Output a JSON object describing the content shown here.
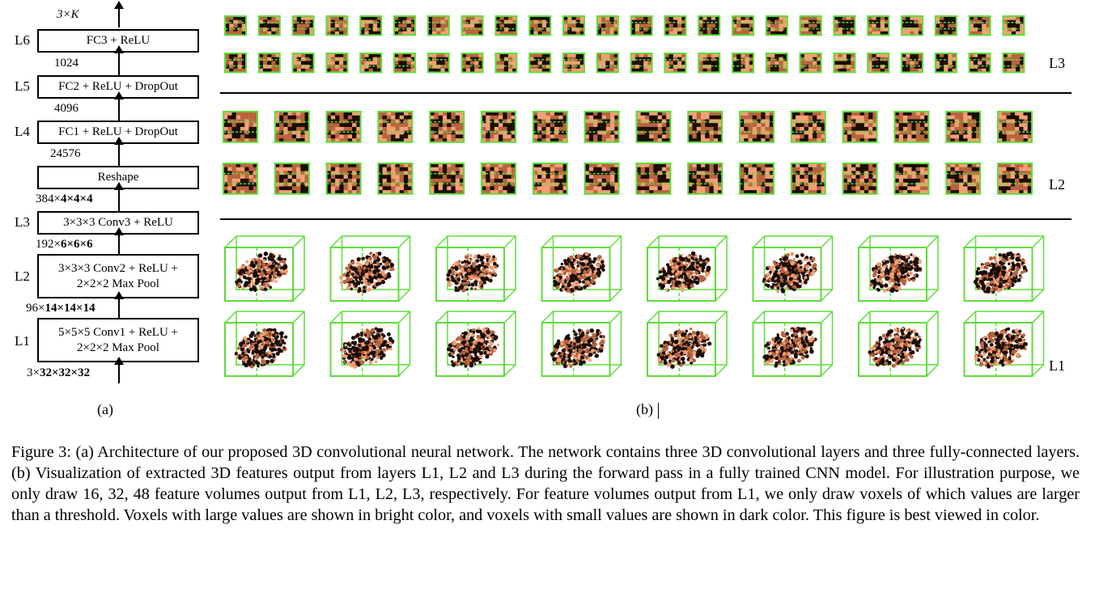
{
  "architecture": {
    "top_output": "3×K",
    "layers": [
      {
        "tag": "L6",
        "text": "FC3 + ReLU"
      },
      {
        "tag": "L5",
        "text": "FC2 + ReLU + DropOut"
      },
      {
        "tag": "L4",
        "text": "FC1 + ReLU + DropOut"
      },
      {
        "tag": "",
        "text": "Reshape"
      },
      {
        "tag": "L3",
        "text": "3×3×3 Conv3 + ReLU"
      },
      {
        "tag": "L2",
        "line1": "3×3×3 Conv2 + ReLU +",
        "line2": "2×2×2 Max Pool"
      },
      {
        "tag": "L1",
        "line1": "5×5×5 Conv1 + ReLU +",
        "line2": "2×2×2 Max Pool"
      }
    ],
    "dims": {
      "d1024": "1024",
      "d4096": "4096",
      "d24576": "24576",
      "d384_a": "384×",
      "d384_b": "4×4×4",
      "d192_a": "192×",
      "d192_b": "6×6×6",
      "d96_a": "96×",
      "d96_b": "14×14×14",
      "d3_a": "3×",
      "d3_b": "32×32×32"
    },
    "label": "(a)"
  },
  "visualization": {
    "label": "(b)",
    "row_labels": {
      "l3": "L3",
      "l2": "L2",
      "l1": "L1"
    },
    "counts": {
      "l3_per_row": 24,
      "l2_per_row": 16,
      "l1_per_row": 8
    },
    "colors": {
      "frame": "#5fdc3a",
      "bright": "#f2a074",
      "dark": "#1a0c06",
      "mid": "#b8643e"
    }
  },
  "caption": "Figure 3: (a) Architecture of our proposed 3D convolutional neural network. The network contains three 3D convolutional layers and three fully-connected layers. (b) Visualization of extracted 3D features output from layers L1, L2 and L3 during the forward pass in a fully trained CNN model. For illustration purpose, we only draw 16, 32, 48 feature volumes output from L1, L2, L3, respectively. For feature volumes output from L1, we only draw voxels of which values are larger than a threshold. Voxels with large values are shown in bright color, and voxels with small values are shown in dark color. This figure is best viewed in color."
}
